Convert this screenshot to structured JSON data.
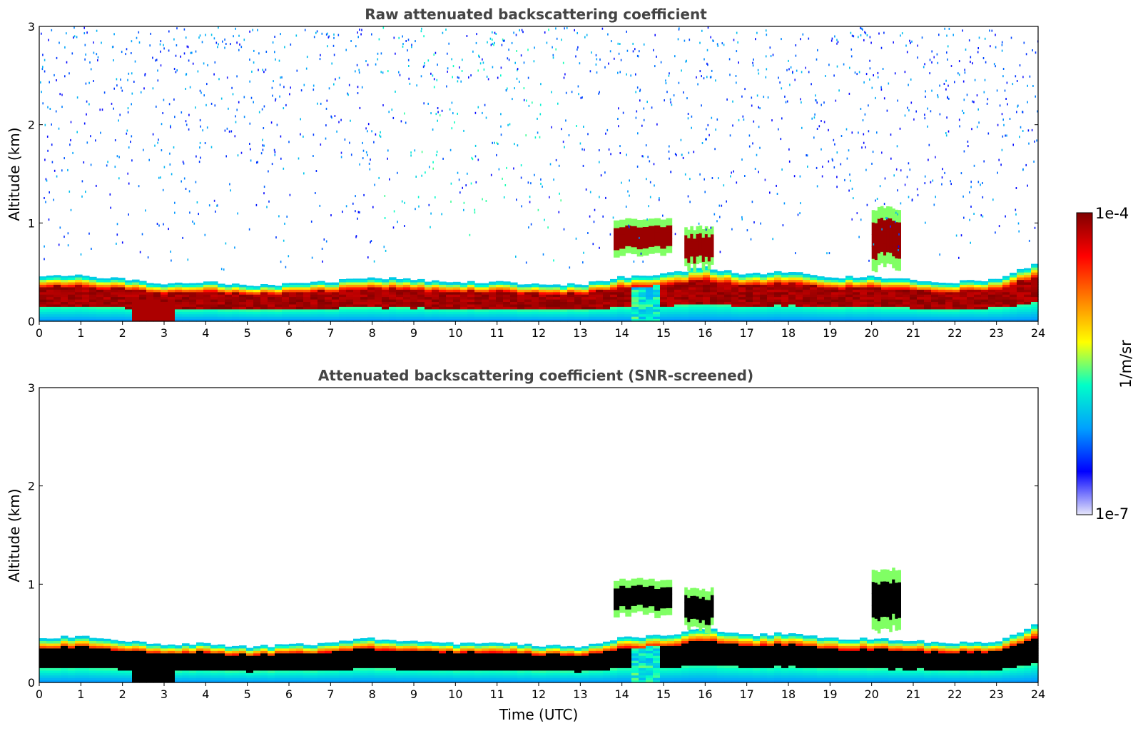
{
  "colors": {
    "stops": [
      "#e6e6fa",
      "#0000ff",
      "#00a0ff",
      "#00ffc8",
      "#ffff00",
      "#ff8000",
      "#ff0000",
      "#800000"
    ],
    "screened_core": "#000000"
  },
  "chart_data": [
    {
      "type": "heatmap",
      "title": "Raw attenuated backscattering coefficient",
      "xlabel": "",
      "ylabel": "Altitude (km)",
      "xlim": [
        0,
        24
      ],
      "ylim": [
        0,
        3
      ],
      "xticks": [
        "0",
        "1",
        "2",
        "3",
        "4",
        "5",
        "6",
        "7",
        "8",
        "9",
        "10",
        "11",
        "12",
        "13",
        "14",
        "15",
        "16",
        "17",
        "18",
        "19",
        "20",
        "21",
        "22",
        "23",
        "24"
      ],
      "yticks": [
        "0",
        "1",
        "2",
        "3"
      ],
      "layer_top_km": [
        0.45,
        0.47,
        0.43,
        0.38,
        0.4,
        0.36,
        0.38,
        0.4,
        0.45,
        0.42,
        0.4,
        0.4,
        0.38,
        0.37,
        0.45,
        0.48,
        0.55,
        0.48,
        0.5,
        0.45,
        0.45,
        0.42,
        0.4,
        0.42,
        0.6
      ],
      "cloud_events": [
        {
          "t_start": 13.8,
          "t_end": 15.2,
          "alt_low_km": 0.7,
          "alt_high_km": 1.05
        },
        {
          "t_start": 15.5,
          "t_end": 16.2,
          "alt_low_km": 0.55,
          "alt_high_km": 0.95
        },
        {
          "t_start": 20.0,
          "t_end": 20.7,
          "alt_low_km": 0.55,
          "alt_high_km": 1.15
        }
      ],
      "noise_enhanced_window": [
        8,
        13
      ],
      "screened": false
    },
    {
      "type": "heatmap",
      "title": "Attenuated backscattering coefficient (SNR-screened)",
      "xlabel": "Time (UTC)",
      "ylabel": "Altitude (km)",
      "xlim": [
        0,
        24
      ],
      "ylim": [
        0,
        3
      ],
      "xticks": [
        "0",
        "1",
        "2",
        "3",
        "4",
        "5",
        "6",
        "7",
        "8",
        "9",
        "10",
        "11",
        "12",
        "13",
        "14",
        "15",
        "16",
        "17",
        "18",
        "19",
        "20",
        "21",
        "22",
        "23",
        "24"
      ],
      "yticks": [
        "0",
        "1",
        "2",
        "3"
      ],
      "layer_top_km": [
        0.45,
        0.47,
        0.43,
        0.38,
        0.4,
        0.36,
        0.38,
        0.4,
        0.45,
        0.42,
        0.4,
        0.4,
        0.38,
        0.37,
        0.45,
        0.48,
        0.55,
        0.48,
        0.5,
        0.45,
        0.45,
        0.42,
        0.4,
        0.42,
        0.6
      ],
      "cloud_events": [
        {
          "t_start": 13.8,
          "t_end": 15.2,
          "alt_low_km": 0.7,
          "alt_high_km": 1.05
        },
        {
          "t_start": 15.5,
          "t_end": 16.2,
          "alt_low_km": 0.55,
          "alt_high_km": 0.95
        },
        {
          "t_start": 20.0,
          "t_end": 20.7,
          "alt_low_km": 0.55,
          "alt_high_km": 1.15
        }
      ],
      "screened": true
    }
  ],
  "colorbar": {
    "max_label": "1e-4",
    "min_label": "1e-7",
    "unit": "1/m/sr"
  }
}
